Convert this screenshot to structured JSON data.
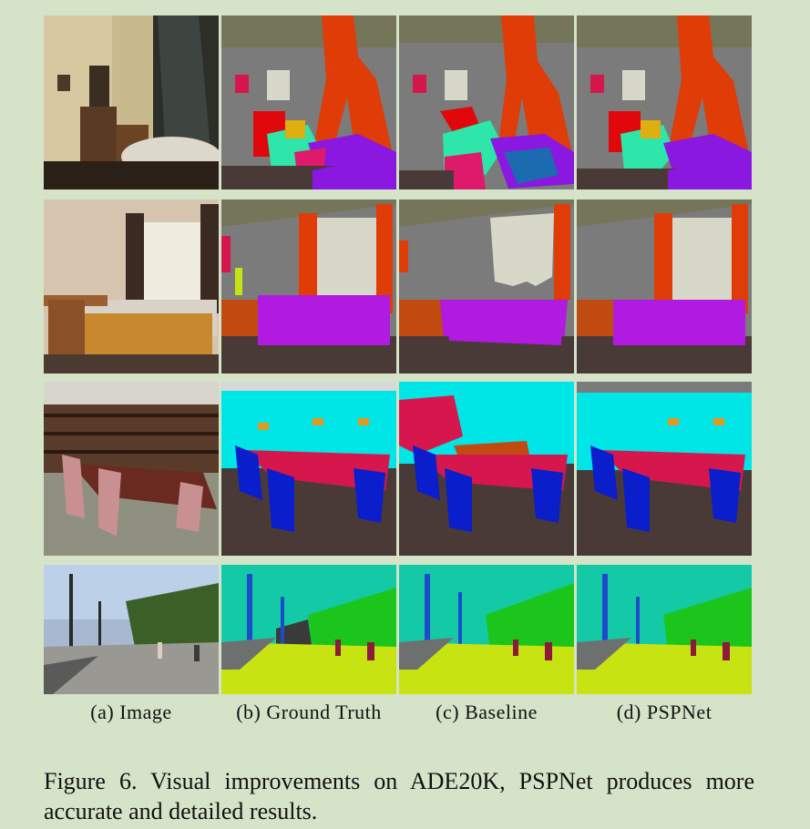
{
  "columns": [
    "(a) Image",
    "(b) Ground Truth",
    "(c) Baseline",
    "(d) PSPNet"
  ],
  "caption": "Figure 6. Visual improvements on ADE20K, PSPNet produces more accurate and detailed results.",
  "rows": [
    "bathroom-scene",
    "bedroom-scene",
    "conference-room-scene",
    "street-scene"
  ],
  "colors": {
    "background": "#d5e3c9",
    "wall": "#7b7b7b",
    "ceiling": "#747559",
    "floor": "#4a3a37",
    "curtain": "#e03c08",
    "bed": "#8a18e0",
    "chair": "#0a1ecc",
    "table": "#d6174e",
    "books": "#00e6e6",
    "sky": "#14c9a5",
    "tree": "#1cc51c",
    "road": "#c8e312",
    "sidewalk": "#6e7070",
    "person": "#8c1a3a"
  }
}
